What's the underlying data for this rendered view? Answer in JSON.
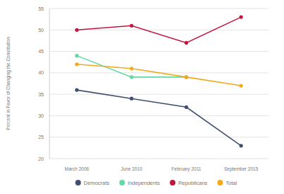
{
  "chart_data": {
    "type": "line",
    "y_label": "Percent in Favor of Changing the Constitution",
    "categories": [
      "March 2006",
      "June 2010",
      "February 2011",
      "September 2015"
    ],
    "series": [
      {
        "name": "Democrats",
        "color": "#3e4f6f",
        "values": [
          36,
          34,
          32,
          23
        ],
        "marker": "circle"
      },
      {
        "name": "Independents",
        "color": "#63d9a6",
        "values": [
          44,
          39,
          39,
          null
        ],
        "marker": "circle"
      },
      {
        "name": "Republicans",
        "color": "#c3163f",
        "values": [
          50,
          51,
          47,
          53
        ],
        "marker": "circle"
      },
      {
        "name": "Total",
        "color": "#f2a91e",
        "values": [
          42,
          41,
          39,
          37
        ],
        "marker": "circle"
      }
    ],
    "ylim": [
      20,
      55
    ],
    "yticks": [
      20,
      25,
      30,
      35,
      40,
      45,
      50,
      55
    ],
    "grid": true,
    "legend": "bottom"
  }
}
